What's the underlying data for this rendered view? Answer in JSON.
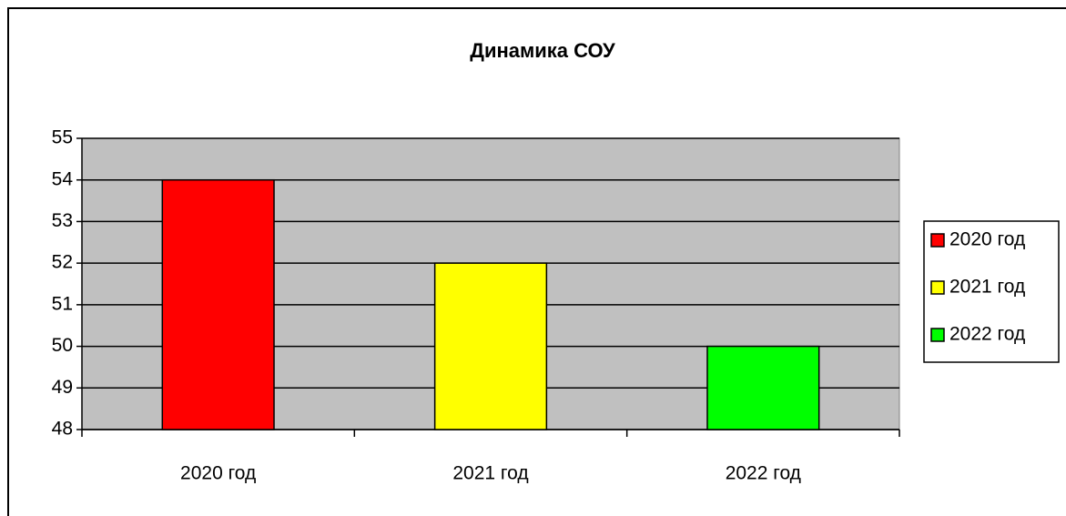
{
  "chart_data": {
    "type": "bar",
    "title": "Динамика СОУ",
    "categories": [
      "2020 год",
      "2021 год",
      "2022 год"
    ],
    "values": [
      54,
      52,
      50
    ],
    "colors": [
      "#ff0000",
      "#ffff00",
      "#00ff00"
    ],
    "ylim": [
      48,
      55
    ],
    "yticks": [
      48,
      49,
      50,
      51,
      52,
      53,
      54,
      55
    ],
    "grid": true,
    "legend": "right"
  }
}
